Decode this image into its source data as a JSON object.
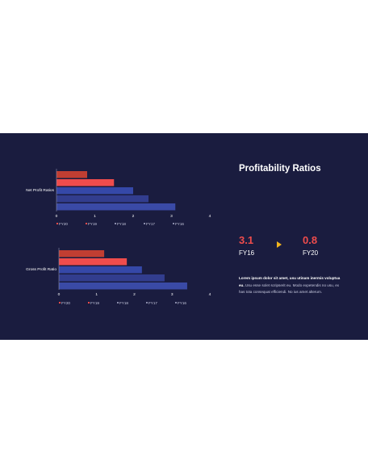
{
  "slide": {
    "title": "Profitability Ratios",
    "kpi_from": {
      "value": "3.1",
      "label": "FY16"
    },
    "kpi_to": {
      "value": "0.8",
      "label": "FY20"
    },
    "body_bold": "Lorem ipsum dolor sit amet, usu utinam inermis voluptua eu.",
    "body_rest": " Usu esse solet scripserit eu. Modo expetendis no usu, ex has tota consequat efficiendi. No ius amet alterum.",
    "watermark": "",
    "arrow_color": "#f2b51d"
  },
  "chart_data": [
    {
      "type": "bar",
      "orientation": "horizontal",
      "categories": [
        "Net Profit Ratios"
      ],
      "series": [
        {
          "name": "FY20",
          "values": [
            0.8
          ],
          "color": "#c13e32"
        },
        {
          "name": "FY19",
          "values": [
            1.5
          ],
          "color": "#ef4c4c"
        },
        {
          "name": "FY18",
          "values": [
            2.0
          ],
          "color": "#3548a8"
        },
        {
          "name": "FY17",
          "values": [
            2.4
          ],
          "color": "#323d8e"
        },
        {
          "name": "FY16",
          "values": [
            3.1
          ],
          "color": "#3a4aa6"
        }
      ],
      "xlim": [
        0,
        4
      ],
      "xticks": [
        "0",
        "1",
        "2",
        "3",
        "4"
      ],
      "legend": [
        "FY20",
        "FY19",
        "FY18",
        "FY17",
        "FY16"
      ],
      "legend_position": "bottom",
      "grid": false
    },
    {
      "type": "bar",
      "orientation": "horizontal",
      "categories": [
        "Gross Profit Ratio"
      ],
      "series": [
        {
          "name": "FY20",
          "values": [
            1.2
          ],
          "color": "#c13e32"
        },
        {
          "name": "FY19",
          "values": [
            1.8
          ],
          "color": "#ef4c4c"
        },
        {
          "name": "FY18",
          "values": [
            2.2
          ],
          "color": "#3548a8"
        },
        {
          "name": "FY17",
          "values": [
            2.8
          ],
          "color": "#323d8e"
        },
        {
          "name": "FY16",
          "values": [
            3.4
          ],
          "color": "#3a4aa6"
        }
      ],
      "xlim": [
        0,
        4
      ],
      "xticks": [
        "0",
        "1",
        "2",
        "3",
        "4"
      ],
      "legend": [
        "FY20",
        "FY19",
        "FY18",
        "FY17",
        "FY16"
      ],
      "legend_position": "bottom",
      "grid": false
    }
  ]
}
